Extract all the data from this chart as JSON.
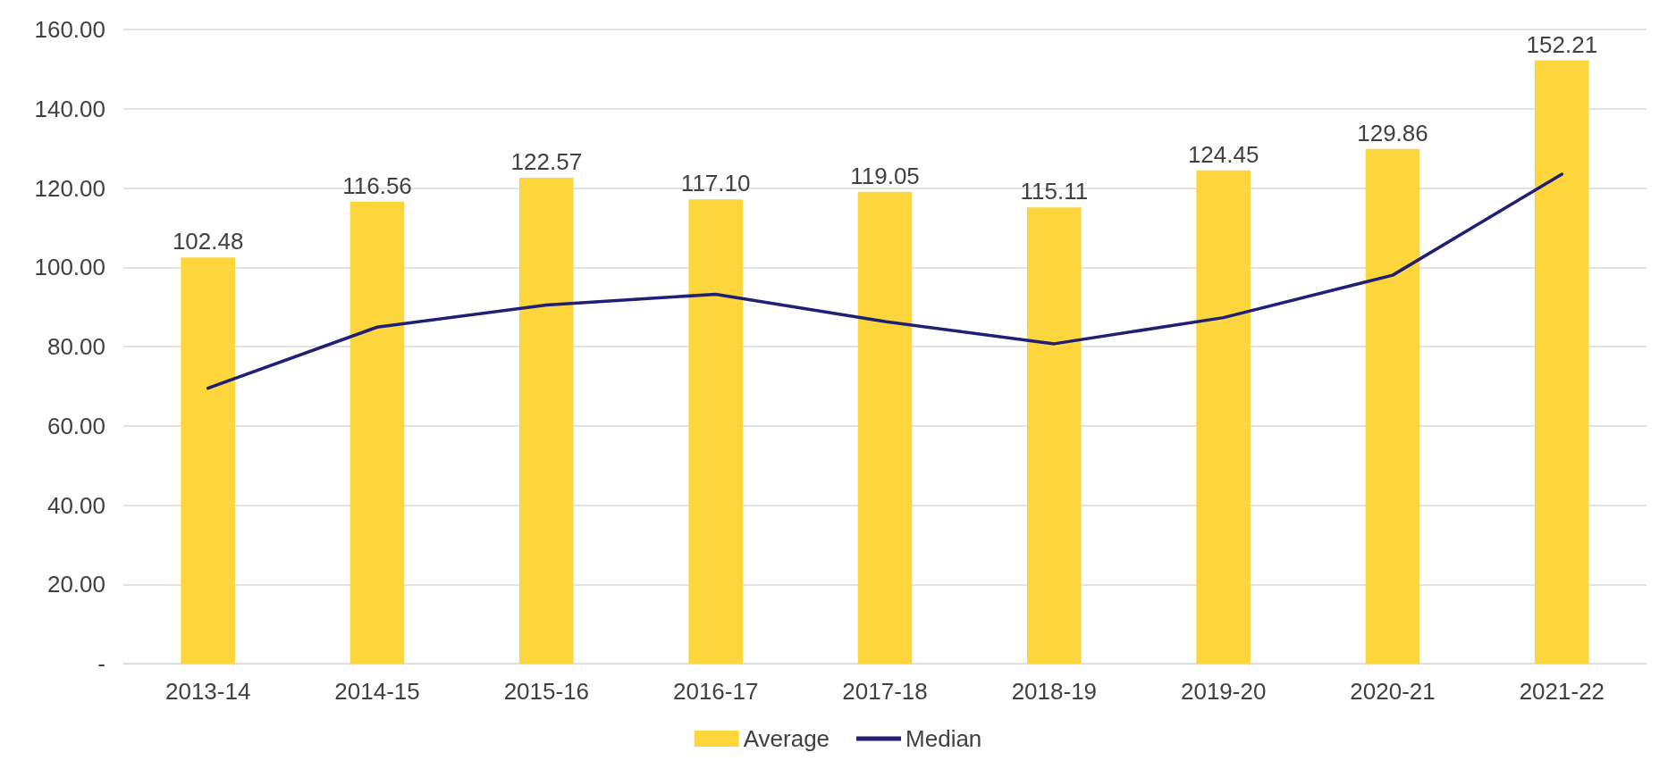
{
  "chart_data": {
    "type": "bar",
    "categories": [
      "2013-14",
      "2014-15",
      "2015-16",
      "2016-17",
      "2017-18",
      "2018-19",
      "2019-20",
      "2020-21",
      "2021-22"
    ],
    "series": [
      {
        "name": "Average",
        "color": "#fdd53c",
        "values": [
          102.48,
          116.56,
          122.57,
          117.1,
          119.05,
          115.11,
          124.45,
          129.86,
          152.21
        ],
        "value_labels": [
          "102.48",
          "116.56",
          "122.57",
          "117.10",
          "119.05",
          "115.11",
          "124.45",
          "129.86",
          "152.21"
        ]
      },
      {
        "name": "Median",
        "type": "line",
        "color": "#1f1f75",
        "values": [
          69.5,
          84.9,
          90.5,
          93.2,
          86.3,
          80.7,
          87.3,
          98.0,
          123.5
        ]
      }
    ],
    "ylim": [
      0,
      160
    ],
    "yticks": [
      {
        "value": 0,
        "label": "-"
      },
      {
        "value": 20,
        "label": "20.00"
      },
      {
        "value": 40,
        "label": "40.00"
      },
      {
        "value": 60,
        "label": "60.00"
      },
      {
        "value": 80,
        "label": "80.00"
      },
      {
        "value": 100,
        "label": "100.00"
      },
      {
        "value": 120,
        "label": "120.00"
      },
      {
        "value": 140,
        "label": "140.00"
      },
      {
        "value": 160,
        "label": "160.00"
      }
    ],
    "grid": "y",
    "legend": "bottom",
    "marker": "none",
    "line_style": "solid"
  }
}
